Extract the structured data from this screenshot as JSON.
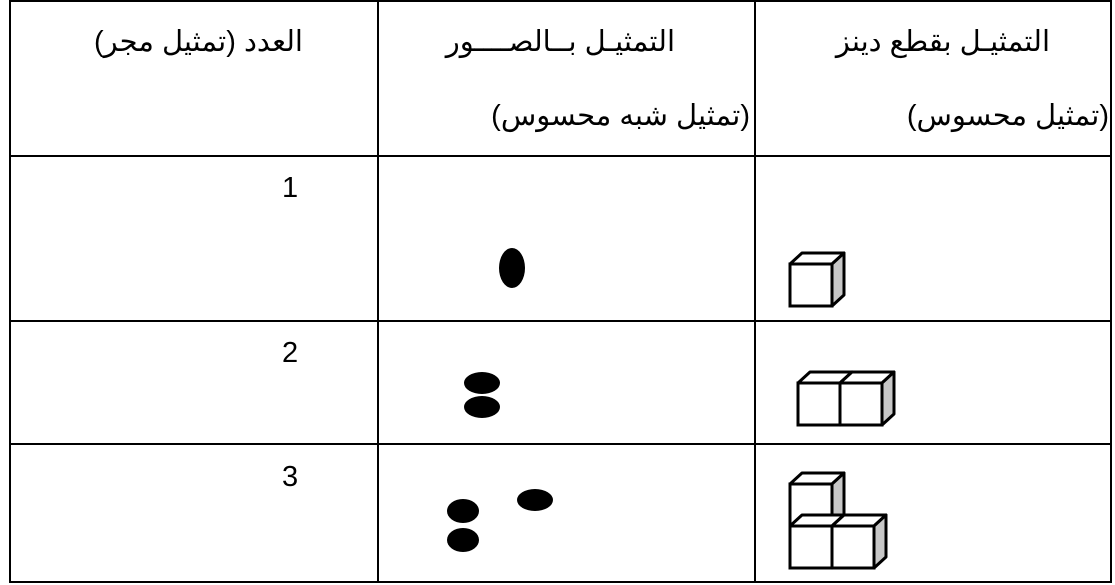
{
  "table": {
    "header": [
      {
        "lines": [
          "التمثيـل بقطع دينز",
          "(تمثيل محسوس)"
        ]
      },
      {
        "lines": [
          "التمثيـل بــالصــــور",
          "(تمثيل شبه محسوس)"
        ]
      },
      {
        "lines": [
          "العدد (تمثيل مجر)"
        ]
      }
    ],
    "rows": [
      {
        "number": "1"
      },
      {
        "number": "2"
      },
      {
        "number": "3"
      }
    ]
  }
}
